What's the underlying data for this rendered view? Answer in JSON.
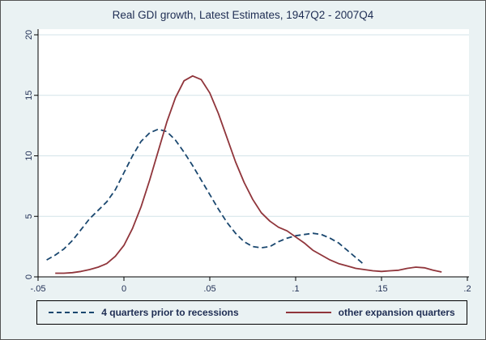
{
  "colors": {
    "background": "#eaf2f3",
    "plot_background": "#ffffff",
    "grid": "#d3e3e8",
    "axis": "#000000",
    "text": "#1e2d53"
  },
  "chart_data": {
    "type": "line",
    "title": "Real GDI growth, Latest Estimates, 1947Q2 - 2007Q4",
    "xlabel": "",
    "ylabel": "",
    "xlim": [
      -0.05,
      0.2
    ],
    "ylim": [
      0,
      20
    ],
    "x_ticks": [
      -0.05,
      0,
      0.05,
      0.1,
      0.15,
      0.2
    ],
    "x_tick_labels": [
      "-.05",
      "0",
      ".05",
      ".1",
      ".15",
      ".2"
    ],
    "y_ticks": [
      0,
      5,
      10,
      15,
      20
    ],
    "y_tick_labels": [
      "0",
      "5",
      "10",
      "15",
      "20"
    ],
    "grid": true,
    "legend_position": "bottom",
    "series": [
      {
        "name": "4 quarters prior to recessions",
        "color": "#1a476f",
        "line_style": "dashed",
        "x": [
          -0.045,
          -0.04,
          -0.035,
          -0.03,
          -0.025,
          -0.02,
          -0.015,
          -0.01,
          -0.005,
          0,
          0.005,
          0.01,
          0.015,
          0.02,
          0.025,
          0.03,
          0.035,
          0.04,
          0.045,
          0.05,
          0.055,
          0.06,
          0.065,
          0.07,
          0.075,
          0.08,
          0.085,
          0.09,
          0.095,
          0.1,
          0.105,
          0.11,
          0.115,
          0.12,
          0.125,
          0.13,
          0.135,
          0.14
        ],
        "y": [
          1.4,
          1.8,
          2.3,
          3.0,
          3.9,
          4.8,
          5.5,
          6.2,
          7.2,
          8.6,
          10.0,
          11.2,
          11.9,
          12.2,
          12.0,
          11.3,
          10.3,
          9.2,
          8.0,
          6.8,
          5.6,
          4.5,
          3.6,
          2.9,
          2.5,
          2.4,
          2.5,
          2.9,
          3.2,
          3.4,
          3.5,
          3.6,
          3.5,
          3.2,
          2.8,
          2.2,
          1.6,
          1.0
        ]
      },
      {
        "name": "other expansion quarters",
        "color": "#90353b",
        "line_style": "solid",
        "x": [
          -0.04,
          -0.035,
          -0.03,
          -0.025,
          -0.02,
          -0.015,
          -0.01,
          -0.005,
          0,
          0.005,
          0.01,
          0.015,
          0.02,
          0.025,
          0.03,
          0.035,
          0.04,
          0.045,
          0.05,
          0.055,
          0.06,
          0.065,
          0.07,
          0.075,
          0.08,
          0.085,
          0.09,
          0.095,
          0.1,
          0.105,
          0.11,
          0.115,
          0.12,
          0.125,
          0.13,
          0.135,
          0.14,
          0.145,
          0.15,
          0.155,
          0.16,
          0.165,
          0.17,
          0.175,
          0.18,
          0.185
        ],
        "y": [
          0.3,
          0.3,
          0.35,
          0.45,
          0.6,
          0.8,
          1.1,
          1.7,
          2.6,
          4.0,
          5.8,
          8.0,
          10.4,
          12.8,
          14.8,
          16.2,
          16.6,
          16.3,
          15.2,
          13.5,
          11.5,
          9.5,
          7.8,
          6.4,
          5.3,
          4.6,
          4.1,
          3.8,
          3.3,
          2.8,
          2.2,
          1.8,
          1.4,
          1.1,
          0.9,
          0.7,
          0.6,
          0.5,
          0.45,
          0.5,
          0.55,
          0.7,
          0.8,
          0.75,
          0.55,
          0.4
        ]
      }
    ]
  }
}
